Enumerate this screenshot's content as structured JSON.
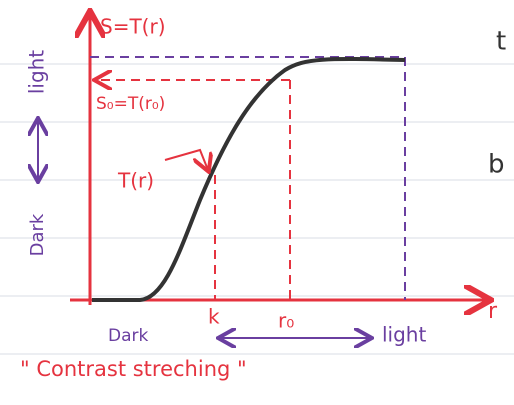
{
  "graph": {
    "y_axis_label": "S=T(r)",
    "x_axis_label": "r",
    "level_label": "S₀=T(r₀)",
    "curve_label": "T(r)",
    "y_dark": "Dark",
    "y_light": "light",
    "x_dark": "Dark",
    "x_light": "light",
    "k_label": "k",
    "r0_label": "r₀"
  },
  "caption": "\" Contrast streching \"",
  "margin_notes": [
    "t",
    "b"
  ]
}
